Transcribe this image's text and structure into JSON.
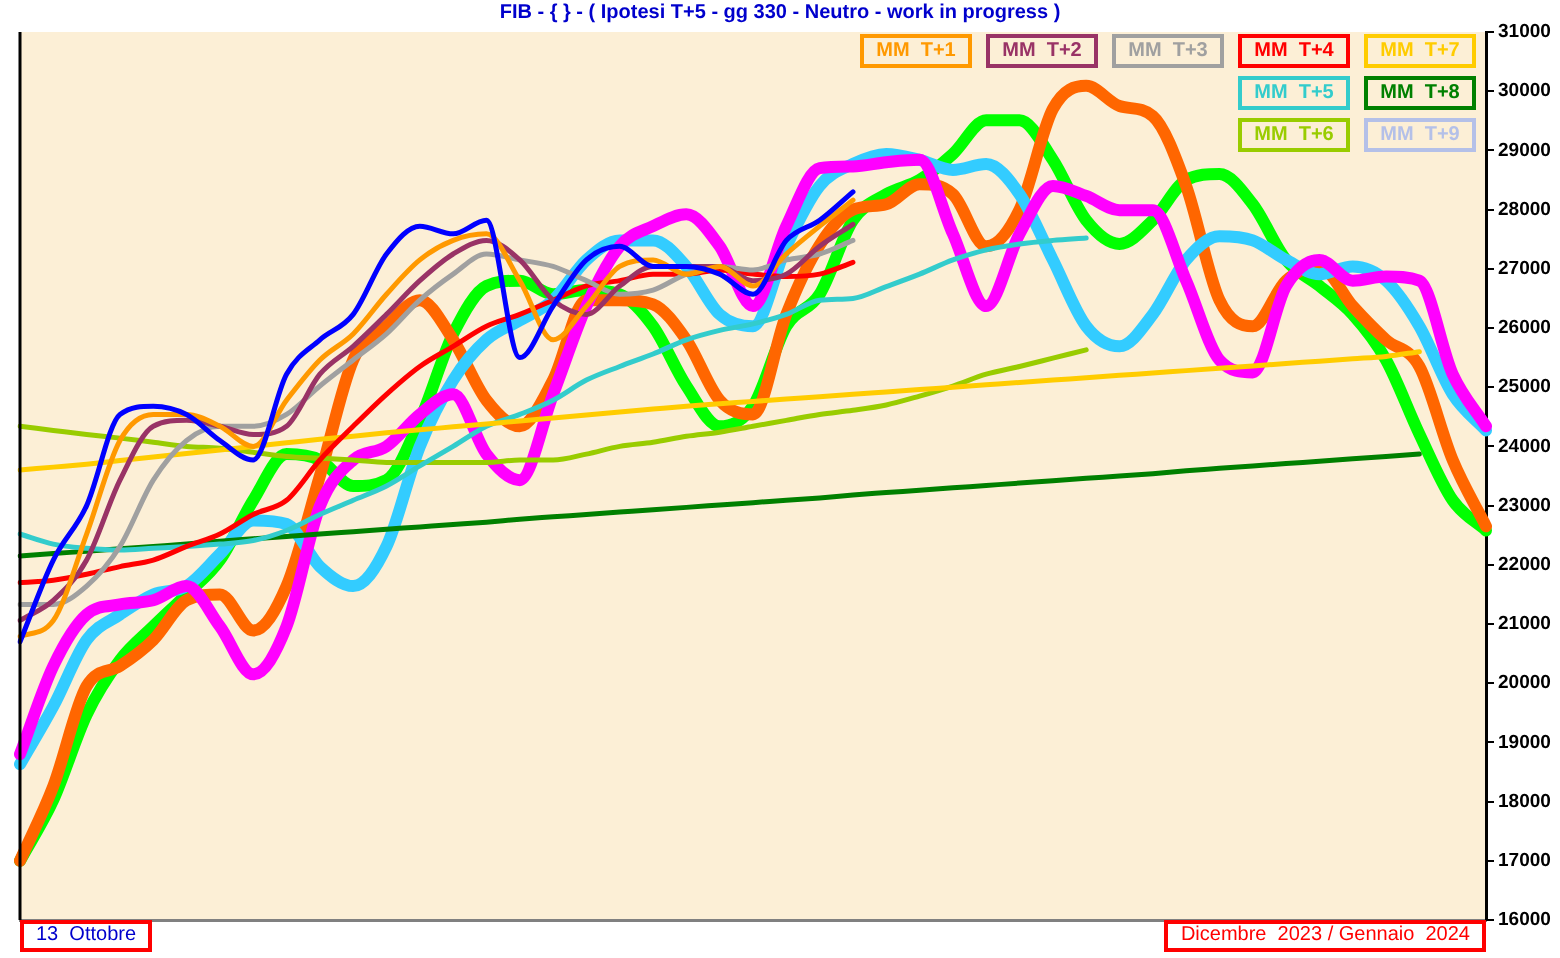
{
  "chart_data": {
    "type": "line",
    "title": "FIB - { } - ( Ipotesi T+5 - gg 330 - Neutro - work in progress )",
    "categories": [
      null,
      null,
      null,
      null,
      null,
      null,
      null,
      null,
      null,
      null,
      null,
      null,
      null,
      null,
      null,
      null,
      null,
      null,
      null,
      null,
      null,
      null,
      null,
      null,
      null,
      null,
      null,
      null,
      null,
      null,
      null,
      null,
      null,
      null,
      null,
      null,
      null,
      null,
      null,
      null,
      null,
      null,
      null,
      null,
      null
    ],
    "series": [
      {
        "color": "#0000ff",
        "values": [
          20700,
          22080,
          23000,
          24540,
          24680,
          24540,
          24100,
          23770,
          25220,
          25800,
          26230,
          27250,
          27720,
          27590,
          27820,
          25500,
          26370,
          27150,
          27380,
          27040,
          27040,
          26910,
          26570,
          27480,
          27820,
          28300,
          null,
          null,
          null,
          null,
          null,
          null,
          null,
          null,
          null,
          null,
          null,
          null,
          null,
          null,
          null,
          null,
          null,
          null,
          null
        ]
      },
      {
        "name": "MM  T+1",
        "color": "#ff9900",
        "values": [
          20790,
          21060,
          22520,
          24100,
          24540,
          24540,
          24340,
          24000,
          24780,
          25460,
          25900,
          26570,
          27150,
          27480,
          27590,
          26800,
          25800,
          26370,
          27040,
          27150,
          26910,
          27040,
          26710,
          27250,
          27720,
          28160,
          null,
          null,
          null,
          null,
          null,
          null,
          null,
          null,
          null,
          null,
          null,
          null,
          null,
          null,
          null,
          null,
          null,
          null,
          null
        ]
      },
      {
        "name": "MM  T+2",
        "color": "#993366",
        "values": [
          21060,
          21400,
          22080,
          23430,
          24340,
          24440,
          24340,
          24200,
          24340,
          25220,
          25690,
          26230,
          26800,
          27250,
          27480,
          27150,
          26470,
          26230,
          26710,
          27040,
          27040,
          27040,
          26800,
          26910,
          27380,
          27750,
          null,
          null,
          null,
          null,
          null,
          null,
          null,
          null,
          null,
          null,
          null,
          null,
          null,
          null,
          null,
          null,
          null,
          null,
          null
        ]
      },
      {
        "name": "MM  T+3",
        "color": "#a0a0a0",
        "values": [
          21330,
          21330,
          21640,
          22310,
          23430,
          24100,
          24340,
          24340,
          24540,
          25020,
          25460,
          25900,
          26470,
          26910,
          27250,
          27150,
          27040,
          26800,
          26570,
          26640,
          26910,
          27040,
          26980,
          27150,
          27250,
          27480,
          null,
          null,
          null,
          null,
          null,
          null,
          null,
          null,
          null,
          null,
          null,
          null,
          null,
          null,
          null,
          null,
          null,
          null,
          null
        ]
      },
      {
        "name": "MM  T+4",
        "color": "#ff0000",
        "values": [
          21700,
          21740,
          21840,
          21970,
          22080,
          22310,
          22520,
          22850,
          23090,
          23770,
          24340,
          24880,
          25350,
          25690,
          26030,
          26230,
          26470,
          26710,
          26800,
          26910,
          26910,
          26980,
          26910,
          26870,
          26910,
          27110,
          null,
          null,
          null,
          null,
          null,
          null,
          null,
          null,
          null,
          null,
          null,
          null,
          null,
          null,
          null,
          null,
          null,
          null,
          null
        ]
      },
      {
        "name": "MM  T+7",
        "color": "#ffcc00",
        "values": [
          23600,
          23650,
          23700,
          23760,
          23820,
          23880,
          23940,
          24000,
          24060,
          24120,
          24170,
          24230,
          24280,
          24330,
          24380,
          24430,
          24480,
          24530,
          24580,
          24630,
          24680,
          24720,
          24760,
          24800,
          24840,
          24880,
          24920,
          24960,
          25000,
          25040,
          25080,
          25120,
          25160,
          25200,
          25240,
          25280,
          25320,
          25360,
          25400,
          25440,
          25480,
          25520,
          25600,
          null,
          null
        ]
      },
      {
        "name": "MM  T+5",
        "color": "#33cccc",
        "values": [
          22520,
          22350,
          22280,
          22250,
          22280,
          22310,
          22350,
          22410,
          22580,
          22850,
          23090,
          23330,
          23670,
          24000,
          24340,
          24540,
          24780,
          25120,
          25350,
          25560,
          25800,
          25960,
          26070,
          26230,
          26470,
          26500,
          26700,
          26910,
          27150,
          27320,
          27420,
          27480,
          27520,
          null,
          null,
          null,
          null,
          null,
          null,
          null,
          null,
          null,
          null,
          null,
          null
        ]
      },
      {
        "name": "MM  T+8",
        "color": "#008000",
        "values": [
          22150,
          22190,
          22230,
          22270,
          22310,
          22350,
          22400,
          22440,
          22480,
          22520,
          22560,
          22600,
          22640,
          22680,
          22720,
          22770,
          22810,
          22850,
          22890,
          22930,
          22970,
          23010,
          23050,
          23090,
          23130,
          23180,
          23220,
          23260,
          23300,
          23340,
          23380,
          23420,
          23460,
          23500,
          23540,
          23590,
          23630,
          23670,
          23710,
          23750,
          23790,
          23830,
          23870,
          null,
          null
        ]
      },
      {
        "name": "MM  T+6",
        "color": "#99cc00",
        "values": [
          24340,
          24270,
          24200,
          24140,
          24070,
          24000,
          23970,
          23900,
          23830,
          23800,
          23770,
          23730,
          23730,
          23730,
          23730,
          23770,
          23770,
          23870,
          24000,
          24070,
          24170,
          24240,
          24340,
          24440,
          24540,
          24610,
          24700,
          24850,
          25020,
          25220,
          25350,
          25490,
          25630,
          null,
          null,
          null,
          null,
          null,
          null,
          null,
          null,
          null,
          null,
          null,
          null
        ]
      },
      {
        "name": "MM  T+9",
        "color": "#b4c0e8",
        "values": [
          null,
          null,
          null,
          null,
          null,
          null,
          null,
          null,
          null,
          null,
          null,
          null,
          null,
          null,
          null,
          null,
          null,
          null,
          null,
          null,
          null,
          null,
          null,
          null,
          null,
          null,
          null,
          null,
          null,
          null,
          null,
          null,
          null,
          null,
          null,
          null,
          null,
          null,
          null,
          null,
          null,
          null,
          null,
          null,
          null
        ]
      },
      {
        "color": "#ff00ff",
        "values": [
          18800,
          20290,
          21160,
          21330,
          21400,
          21640,
          20960,
          20150,
          20960,
          22990,
          23770,
          24000,
          24540,
          24880,
          23870,
          23430,
          24880,
          26370,
          27380,
          27720,
          27920,
          27380,
          26370,
          27720,
          28700,
          28730,
          28800,
          28840,
          27590,
          26370,
          27590,
          28400,
          28230,
          27990,
          27990,
          26800,
          25460,
          25250,
          26710,
          27150,
          26800,
          26870,
          26800,
          25220,
          24340
        ]
      },
      {
        "color": "#33ccff",
        "values": [
          18630,
          19610,
          20730,
          21160,
          21500,
          21640,
          22180,
          22750,
          22690,
          21970,
          21640,
          22310,
          24000,
          25120,
          25800,
          26130,
          26470,
          27150,
          27480,
          27480,
          27040,
          26230,
          26030,
          27380,
          28400,
          28770,
          28940,
          28840,
          28670,
          28770,
          28260,
          27150,
          26030,
          25690,
          26230,
          27150,
          27550,
          27480,
          27150,
          26910,
          27040,
          26800,
          26030,
          24880,
          24270
        ]
      },
      {
        "color": "#ff6600",
        "values": [
          17000,
          18260,
          19950,
          20290,
          20730,
          21400,
          21500,
          20890,
          21640,
          23500,
          25460,
          26030,
          26470,
          25800,
          24780,
          24340,
          25120,
          26470,
          26470,
          26400,
          25800,
          24780,
          24540,
          26230,
          27400,
          28000,
          28090,
          28430,
          28260,
          27380,
          28000,
          29700,
          30090,
          29750,
          29580,
          28400,
          26470,
          26030,
          26800,
          27040,
          26370,
          25800,
          25350,
          23770,
          22650
        ]
      },
      {
        "color": "#00ff00",
        "values": [
          17000,
          18030,
          19470,
          20390,
          20960,
          21500,
          22080,
          23090,
          23870,
          23770,
          23330,
          23430,
          24440,
          25900,
          26710,
          26800,
          26570,
          26640,
          26570,
          26030,
          25020,
          24340,
          24680,
          26030,
          26570,
          27820,
          28260,
          28500,
          28940,
          29510,
          29510,
          28840,
          27820,
          27420,
          27820,
          28500,
          28600,
          28090,
          27150,
          26710,
          26230,
          25460,
          24210,
          23090,
          22580
        ]
      }
    ],
    "ylim": [
      16000,
      31000
    ],
    "yticks": [
      16000,
      17000,
      18000,
      19000,
      20000,
      21000,
      22000,
      23000,
      24000,
      25000,
      26000,
      27000,
      28000,
      29000,
      30000,
      31000
    ],
    "tick_labels": "y",
    "legend": "top right",
    "marker": "none",
    "grid": false,
    "annotations": [
      "13  Ottobre",
      "Dicembre  2023 / Gennaio  2024"
    ]
  }
}
